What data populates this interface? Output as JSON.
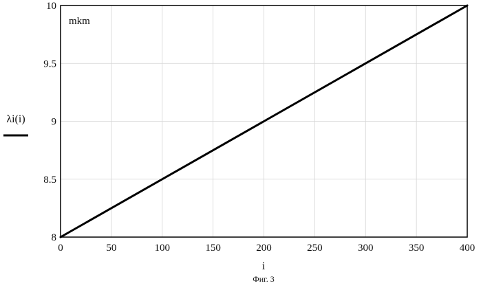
{
  "chart_data": {
    "type": "line",
    "title": "",
    "xlabel": "i",
    "ylabel": "λi(i)",
    "unit_label": "mkm",
    "caption": "Фиг. 3",
    "xlim": [
      0,
      400
    ],
    "ylim": [
      8,
      10
    ],
    "x_ticks": [
      0,
      50,
      100,
      150,
      200,
      250,
      300,
      350,
      400
    ],
    "y_ticks": [
      8,
      8.5,
      9,
      9.5,
      10
    ],
    "y_tick_labels": [
      "8",
      "8.5",
      "9",
      "9.5",
      "10"
    ],
    "grid": true,
    "series": [
      {
        "x": [
          0,
          400
        ],
        "y": [
          8,
          10
        ]
      }
    ]
  }
}
